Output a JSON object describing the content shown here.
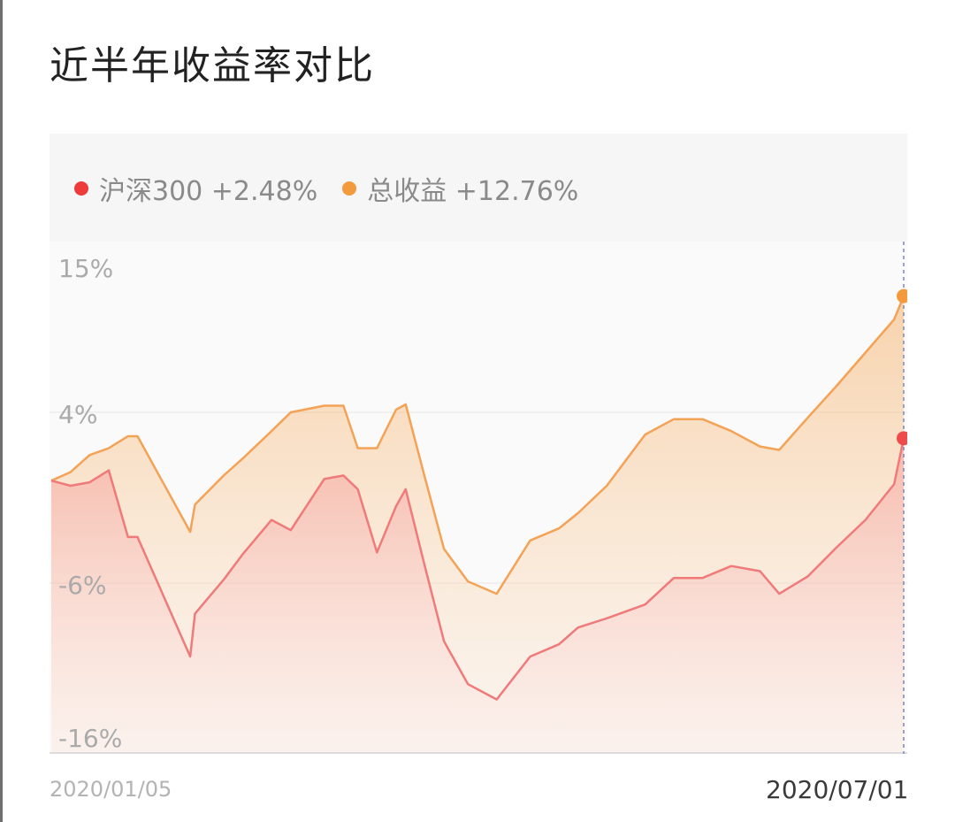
{
  "header": {
    "title": "近半年收益率对比"
  },
  "legend": {
    "items": [
      {
        "label": "沪深300 +2.48%",
        "color": "#ee3a3a"
      },
      {
        "label": "总收益 +12.76%",
        "color": "#f39a3c"
      }
    ]
  },
  "axis": {
    "y_ticks": [
      "15%",
      "4%",
      "-6%",
      "-16%"
    ],
    "x_start": "2020/01/05",
    "x_end": "2020/07/01"
  },
  "chart_data": {
    "type": "area",
    "x_range": [
      "2020/01/05",
      "2020/07/01"
    ],
    "y_unit": "%",
    "ylim": [
      -16,
      15
    ],
    "y_ticks": [
      15,
      4,
      -6,
      -16
    ],
    "grid": true,
    "legend_position": "top-left",
    "series": [
      {
        "name": "沪深300",
        "color": "#ee3a3a",
        "final_value": 2.48,
        "x": [
          "2020-01-05",
          "2020-01-09",
          "2020-01-13",
          "2020-01-17",
          "2020-01-21",
          "2020-01-23",
          "2020-02-03",
          "2020-02-04",
          "2020-02-10",
          "2020-02-14",
          "2020-02-20",
          "2020-02-24",
          "2020-03-02",
          "2020-03-06",
          "2020-03-09",
          "2020-03-13",
          "2020-03-17",
          "2020-03-19",
          "2020-03-23",
          "2020-03-27",
          "2020-04-01",
          "2020-04-07",
          "2020-04-14",
          "2020-04-20",
          "2020-04-24",
          "2020-04-30",
          "2020-05-08",
          "2020-05-14",
          "2020-05-20",
          "2020-05-26",
          "2020-06-01",
          "2020-06-05",
          "2020-06-11",
          "2020-06-17",
          "2020-06-23",
          "2020-06-29",
          "2020-07-01"
        ],
        "values": [
          0.0,
          -0.3,
          -0.1,
          0.6,
          -3.3,
          -3.3,
          -10.8,
          -8.0,
          -5.8,
          -4.3,
          -2.3,
          -2.9,
          0.1,
          0.3,
          -0.5,
          -4.2,
          -1.5,
          -0.5,
          -5.0,
          -9.8,
          -12.6,
          -13.6,
          -10.8,
          -10.0,
          -8.9,
          -8.3,
          -7.4,
          -5.7,
          -5.7,
          -5.0,
          -5.3,
          -6.7,
          -5.6,
          -3.9,
          -2.3,
          -0.2,
          2.48
        ]
      },
      {
        "name": "总收益",
        "color": "#f39a3c",
        "final_value": 12.76,
        "x": [
          "2020-01-05",
          "2020-01-09",
          "2020-01-13",
          "2020-01-17",
          "2020-01-21",
          "2020-01-23",
          "2020-02-03",
          "2020-02-04",
          "2020-02-10",
          "2020-02-14",
          "2020-02-20",
          "2020-02-24",
          "2020-03-02",
          "2020-03-06",
          "2020-03-09",
          "2020-03-13",
          "2020-03-17",
          "2020-03-19",
          "2020-03-23",
          "2020-03-27",
          "2020-04-01",
          "2020-04-07",
          "2020-04-14",
          "2020-04-20",
          "2020-04-24",
          "2020-04-30",
          "2020-05-08",
          "2020-05-14",
          "2020-05-20",
          "2020-05-26",
          "2020-06-01",
          "2020-06-05",
          "2020-06-11",
          "2020-06-17",
          "2020-06-23",
          "2020-06-29",
          "2020-07-01"
        ],
        "values": [
          0.0,
          0.5,
          1.5,
          1.9,
          2.6,
          2.6,
          -3.0,
          -1.4,
          0.3,
          1.3,
          2.9,
          4.0,
          4.5,
          4.5,
          1.9,
          1.9,
          4.2,
          4.6,
          0.2,
          -4.0,
          -5.9,
          -6.7,
          -3.5,
          -2.8,
          -1.9,
          -0.3,
          2.7,
          3.6,
          3.6,
          2.9,
          2.0,
          1.8,
          3.7,
          6.0,
          8.5,
          11.0,
          12.76
        ]
      }
    ]
  }
}
